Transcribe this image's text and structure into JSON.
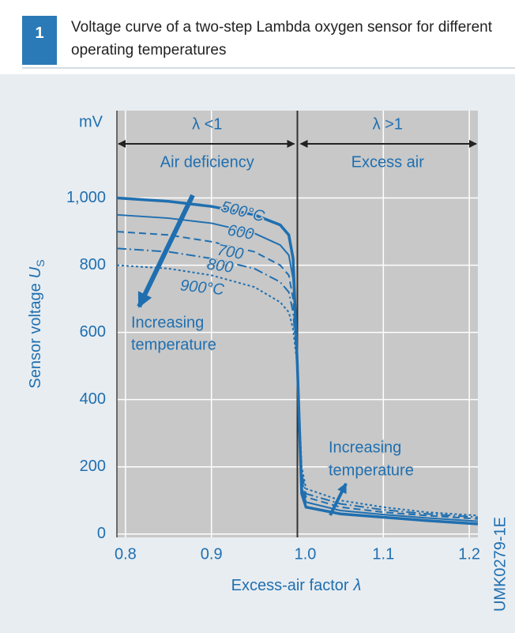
{
  "chart_data": {
    "type": "line",
    "figure_number": "1",
    "title": "Voltage curve of a two-step Lambda oxygen sensor for different operating temperatures",
    "y_unit": "mV",
    "y_label": "Sensor voltage",
    "y_symbol": "U",
    "y_subscript": "S",
    "x_label": "Excess-air factor",
    "x_symbol": "λ",
    "left_region": [
      "λ <1",
      "Air deficiency"
    ],
    "right_region": [
      "λ >1",
      "Excess air"
    ],
    "left_note": [
      "Increasing",
      "temperature"
    ],
    "right_note": [
      "Increasing",
      "temperature"
    ],
    "code": "UMK0279-1E",
    "x": [
      0.79,
      0.85,
      0.9,
      0.95,
      0.98,
      0.99,
      0.995,
      1.0,
      1.005,
      1.01,
      1.05,
      1.1,
      1.15,
      1.21
    ],
    "series": [
      {
        "name": "500°C",
        "color": "#1f6fb0",
        "dash": "solid",
        "width": 3.5,
        "values": [
          1000,
          990,
          975,
          950,
          920,
          890,
          820,
          500,
          120,
          80,
          60,
          50,
          40,
          30
        ]
      },
      {
        "name": "600",
        "color": "#1f6fb0",
        "dash": "solid",
        "width": 2,
        "values": [
          950,
          940,
          925,
          895,
          860,
          830,
          760,
          500,
          140,
          95,
          70,
          58,
          48,
          38
        ]
      },
      {
        "name": "700",
        "color": "#1f6fb0",
        "dash": "dashed",
        "width": 2,
        "values": [
          900,
          890,
          870,
          840,
          800,
          770,
          700,
          500,
          160,
          110,
          80,
          65,
          55,
          45
        ]
      },
      {
        "name": "800",
        "color": "#1f6fb0",
        "dash": "dashdot",
        "width": 2,
        "values": [
          850,
          840,
          820,
          790,
          750,
          720,
          660,
          500,
          180,
          120,
          90,
          72,
          60,
          50
        ]
      },
      {
        "name": "900°C",
        "color": "#1f6fb0",
        "dash": "dotted",
        "width": 2,
        "values": [
          800,
          790,
          770,
          735,
          690,
          660,
          610,
          500,
          200,
          135,
          100,
          80,
          65,
          55
        ]
      }
    ],
    "xlim": [
      0.79,
      1.21
    ],
    "ylim": [
      -10,
      1260
    ],
    "xticks": [
      0.8,
      0.9,
      {
        "value": 1.0,
        "label": "1.0"
      },
      1.1,
      1.2
    ],
    "yticks": [
      0,
      200,
      400,
      600,
      800,
      {
        "value": 1000,
        "label": "1,000"
      }
    ],
    "grid": true
  }
}
